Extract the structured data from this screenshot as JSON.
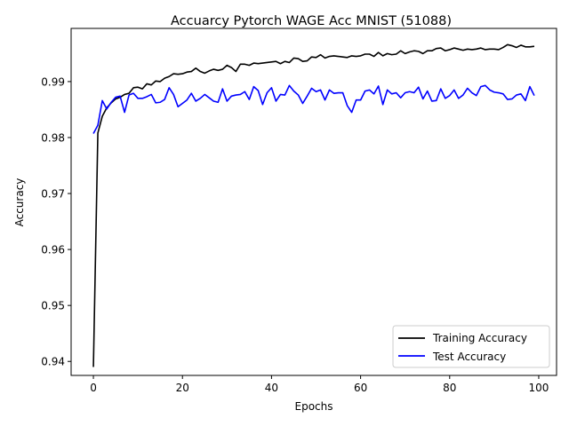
{
  "chart_data": {
    "type": "line",
    "title": "Accuarcy Pytorch WAGE Acc MNIST (51088)",
    "xlabel": "Epochs",
    "ylabel": "Accuracy",
    "xlim": [
      -5,
      104
    ],
    "ylim": [
      0.9375,
      0.9995
    ],
    "xticks": [
      0,
      20,
      40,
      60,
      80,
      100
    ],
    "yticks": [
      0.94,
      0.95,
      0.96,
      0.97,
      0.98,
      0.99
    ],
    "ytick_labels": [
      "0.94",
      "0.95",
      "0.96",
      "0.97",
      "0.98",
      "0.99"
    ],
    "grid": false,
    "legend_position": "lower-right",
    "series": [
      {
        "name": "Training Accuracy",
        "color": "#000000",
        "x": [
          0,
          1,
          2,
          3,
          4,
          5,
          6,
          7,
          8,
          9,
          10,
          11,
          12,
          13,
          14,
          15,
          16,
          17,
          18,
          19,
          20,
          21,
          22,
          23,
          24,
          25,
          26,
          27,
          28,
          29,
          30,
          31,
          32,
          33,
          34,
          35,
          36,
          37,
          38,
          39,
          40,
          41,
          42,
          43,
          44,
          45,
          46,
          47,
          48,
          49,
          50,
          51,
          52,
          53,
          54,
          55,
          56,
          57,
          58,
          59,
          60,
          61,
          62,
          63,
          64,
          65,
          66,
          67,
          68,
          69,
          70,
          71,
          72,
          73,
          74,
          75,
          76,
          77,
          78,
          79,
          80,
          81,
          82,
          83,
          84,
          85,
          86,
          87,
          88,
          89,
          90,
          91,
          92,
          93,
          94,
          95,
          96,
          97,
          98,
          99
        ],
        "values": [
          0.939,
          0.9808,
          0.9838,
          0.9853,
          0.9862,
          0.9869,
          0.9872,
          0.9877,
          0.9879,
          0.9889,
          0.989,
          0.9887,
          0.9896,
          0.9894,
          0.9901,
          0.99,
          0.9906,
          0.9909,
          0.9914,
          0.9913,
          0.9914,
          0.9917,
          0.9918,
          0.9924,
          0.9918,
          0.9915,
          0.9919,
          0.9922,
          0.992,
          0.9922,
          0.9929,
          0.9925,
          0.9918,
          0.9931,
          0.9931,
          0.9929,
          0.9933,
          0.9932,
          0.9933,
          0.9934,
          0.9935,
          0.9936,
          0.9932,
          0.9936,
          0.9934,
          0.9942,
          0.9941,
          0.9936,
          0.9937,
          0.9944,
          0.9943,
          0.9948,
          0.9942,
          0.9945,
          0.9946,
          0.9945,
          0.9944,
          0.9943,
          0.9946,
          0.9945,
          0.9946,
          0.9949,
          0.9949,
          0.9945,
          0.9952,
          0.9946,
          0.995,
          0.9948,
          0.9949,
          0.9955,
          0.995,
          0.9953,
          0.9955,
          0.9954,
          0.995,
          0.9955,
          0.9955,
          0.9959,
          0.996,
          0.9955,
          0.9957,
          0.996,
          0.9958,
          0.9956,
          0.9958,
          0.9957,
          0.9958,
          0.996,
          0.9957,
          0.9958,
          0.9958,
          0.9957,
          0.9961,
          0.9966,
          0.9964,
          0.9961,
          0.9965,
          0.9962,
          0.9962,
          0.9963
        ]
      },
      {
        "name": "Test Accuracy",
        "color": "#0000ff",
        "x": [
          0,
          1,
          2,
          3,
          4,
          5,
          6,
          7,
          8,
          9,
          10,
          11,
          12,
          13,
          14,
          15,
          16,
          17,
          18,
          19,
          20,
          21,
          22,
          23,
          24,
          25,
          26,
          27,
          28,
          29,
          30,
          31,
          32,
          33,
          34,
          35,
          36,
          37,
          38,
          39,
          40,
          41,
          42,
          43,
          44,
          45,
          46,
          47,
          48,
          49,
          50,
          51,
          52,
          53,
          54,
          55,
          56,
          57,
          58,
          59,
          60,
          61,
          62,
          63,
          64,
          65,
          66,
          67,
          68,
          69,
          70,
          71,
          72,
          73,
          74,
          75,
          76,
          77,
          78,
          79,
          80,
          81,
          82,
          83,
          84,
          85,
          86,
          87,
          88,
          89,
          90,
          91,
          92,
          93,
          94,
          95,
          96,
          97,
          98,
          99
        ],
        "values": [
          0.9807,
          0.9822,
          0.9866,
          0.9851,
          0.9863,
          0.9872,
          0.9874,
          0.9845,
          0.9876,
          0.9879,
          0.987,
          0.987,
          0.9873,
          0.9877,
          0.9862,
          0.9863,
          0.9868,
          0.9889,
          0.9877,
          0.9855,
          0.9861,
          0.9867,
          0.9879,
          0.9865,
          0.987,
          0.9877,
          0.9871,
          0.9865,
          0.9863,
          0.9887,
          0.9865,
          0.9874,
          0.9876,
          0.9877,
          0.9882,
          0.9868,
          0.9891,
          0.9884,
          0.9859,
          0.988,
          0.9889,
          0.9865,
          0.9877,
          0.9876,
          0.9893,
          0.9883,
          0.9876,
          0.9861,
          0.9874,
          0.9888,
          0.9882,
          0.9885,
          0.9867,
          0.9885,
          0.9879,
          0.988,
          0.988,
          0.9857,
          0.9845,
          0.9867,
          0.9867,
          0.9883,
          0.9885,
          0.9878,
          0.9892,
          0.9859,
          0.9885,
          0.9878,
          0.988,
          0.9871,
          0.988,
          0.9882,
          0.988,
          0.989,
          0.9869,
          0.9883,
          0.9865,
          0.9866,
          0.9887,
          0.987,
          0.9875,
          0.9885,
          0.987,
          0.9876,
          0.9888,
          0.988,
          0.9875,
          0.9891,
          0.9893,
          0.9885,
          0.9881,
          0.988,
          0.9878,
          0.9868,
          0.9869,
          0.9876,
          0.9878,
          0.9866,
          0.9891,
          0.9875
        ]
      }
    ]
  }
}
